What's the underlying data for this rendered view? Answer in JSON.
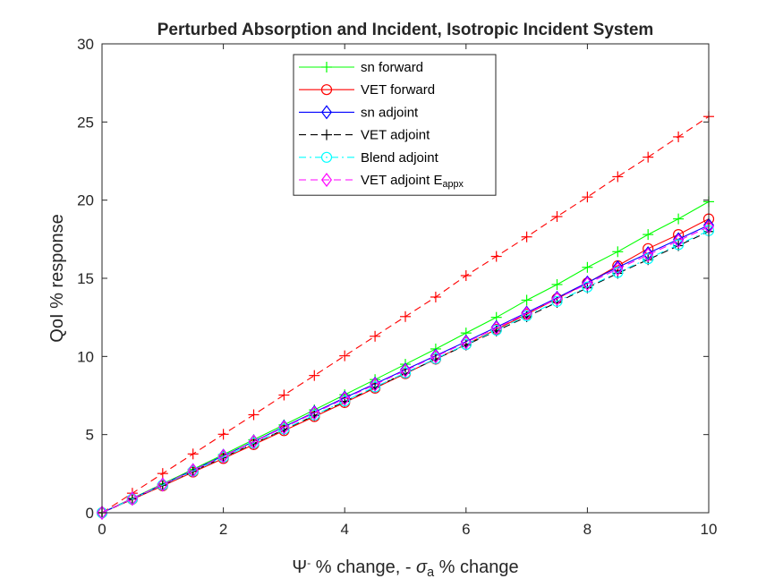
{
  "chart_data": {
    "type": "line",
    "title": "Perturbed Absorption and Incident, Isotropic Incident System",
    "xlabel": {
      "parts": [
        {
          "text": "Ψ",
          "style": "normal"
        },
        {
          "text": "-",
          "style": "sup"
        },
        {
          "text": " % change, - ",
          "style": "normal"
        },
        {
          "text": "σ",
          "style": "italic"
        },
        {
          "text": "a",
          "style": "sub"
        },
        {
          "text": " % change",
          "style": "normal"
        }
      ]
    },
    "ylabel": "QoI % response",
    "xlim": [
      0,
      10
    ],
    "ylim": [
      0,
      30
    ],
    "xticks": [
      0,
      2,
      4,
      6,
      8,
      10
    ],
    "yticks": [
      0,
      5,
      10,
      15,
      20,
      25,
      30
    ],
    "grid": false,
    "legend_position": "top-center",
    "x": [
      0,
      0.5,
      1,
      1.5,
      2,
      2.5,
      3,
      3.5,
      4,
      4.5,
      5,
      5.5,
      6,
      6.5,
      7,
      7.5,
      8,
      8.5,
      9,
      9.5,
      10
    ],
    "series": [
      {
        "name": "sn forward",
        "color": "#00ff00",
        "dash": "solid",
        "marker": "plus",
        "values": [
          0,
          0.92,
          1.85,
          2.78,
          3.72,
          4.67,
          5.62,
          6.58,
          7.55,
          8.52,
          9.5,
          10.48,
          11.5,
          12.5,
          13.6,
          14.6,
          15.7,
          16.7,
          17.8,
          18.8,
          19.9
        ]
      },
      {
        "name": "VET forward",
        "color": "#ff0000",
        "dash": "solid",
        "marker": "circle",
        "values": [
          0,
          0.86,
          1.72,
          2.6,
          3.47,
          4.36,
          5.25,
          6.15,
          7.05,
          7.97,
          8.9,
          9.83,
          10.77,
          11.73,
          12.7,
          13.7,
          14.7,
          15.8,
          16.9,
          17.8,
          18.8
        ]
      },
      {
        "name": "sn adjoint",
        "color": "#0000ff",
        "dash": "solid",
        "marker": "diamond",
        "values": [
          0,
          0.9,
          1.8,
          2.72,
          3.64,
          4.56,
          5.5,
          6.43,
          7.36,
          8.25,
          9.15,
          10.05,
          10.95,
          11.87,
          12.8,
          13.75,
          14.73,
          15.7,
          16.6,
          17.5,
          18.4
        ]
      },
      {
        "name": "VET adjoint",
        "color": "#000000",
        "dash": "dash",
        "marker": "plus",
        "values": [
          0,
          0.88,
          1.76,
          2.65,
          3.54,
          4.43,
          5.32,
          6.22,
          7.12,
          8.03,
          8.93,
          9.83,
          10.73,
          11.63,
          12.54,
          13.46,
          14.39,
          15.32,
          16.19,
          17.09,
          17.99
        ]
      },
      {
        "name": "Blend adjoint",
        "color": "#00ffff",
        "dash": "dashdot",
        "marker": "circle",
        "values": [
          0,
          0.88,
          1.77,
          2.66,
          3.55,
          4.45,
          5.35,
          6.25,
          7.15,
          8.05,
          8.95,
          9.86,
          10.77,
          11.68,
          12.6,
          13.52,
          14.44,
          15.37,
          16.25,
          17.15,
          18.05
        ]
      },
      {
        "name_parts": [
          {
            "text": "VET adjoint E",
            "style": "normal"
          },
          {
            "text": "appx",
            "style": "sub"
          }
        ],
        "color": "#ff00ff",
        "dash": "dash",
        "marker": "diamond",
        "values": [
          0,
          0.9,
          1.8,
          2.71,
          3.62,
          4.54,
          5.46,
          6.38,
          7.3,
          8.2,
          9.1,
          10.0,
          10.9,
          11.82,
          12.75,
          13.7,
          14.65,
          15.6,
          16.5,
          17.4,
          18.3
        ]
      }
    ],
    "extra_series": [
      {
        "color": "#ff0000",
        "dash": "dash",
        "marker": "plus",
        "in_legend": false,
        "values": [
          0,
          1.25,
          2.51,
          3.76,
          5.02,
          6.27,
          7.53,
          8.78,
          10.04,
          11.29,
          12.55,
          13.8,
          15.17,
          16.4,
          17.65,
          18.95,
          20.2,
          21.5,
          22.75,
          24.05,
          25.35
        ]
      }
    ]
  }
}
